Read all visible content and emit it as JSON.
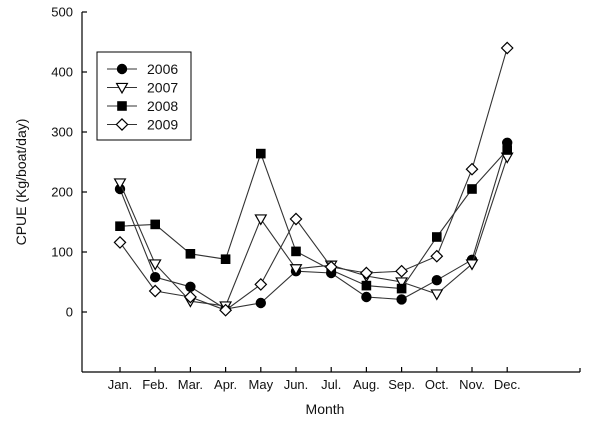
{
  "chart_data": {
    "type": "line",
    "title": "",
    "xlabel": "Month",
    "ylabel": "CPUE (Kg/boat/day)",
    "categories": [
      "Jan.",
      "Feb.",
      "Mar.",
      "Apr.",
      "May",
      "Jun.",
      "Jul.",
      "Aug.",
      "Sep.",
      "Oct.",
      "Nov.",
      "Dec."
    ],
    "yticks": [
      0,
      100,
      200,
      300,
      400,
      500
    ],
    "ylim": [
      -100,
      500
    ],
    "grid": false,
    "legend_position": "top-left",
    "series": [
      {
        "name": "2006",
        "marker": "circle",
        "values": [
          205,
          58,
          42,
          5,
          15,
          68,
          65,
          25,
          21,
          53,
          87,
          282
        ]
      },
      {
        "name": "2007",
        "marker": "triangle-down",
        "values": [
          215,
          80,
          18,
          10,
          155,
          72,
          78,
          60,
          50,
          30,
          80,
          258
        ]
      },
      {
        "name": "2008",
        "marker": "square",
        "values": [
          143,
          146,
          97,
          88,
          264,
          101,
          70,
          44,
          39,
          125,
          205,
          270
        ]
      },
      {
        "name": "2009",
        "marker": "diamond",
        "values": [
          116,
          35,
          25,
          3,
          46,
          155,
          75,
          65,
          68,
          93,
          238,
          440
        ]
      }
    ]
  }
}
